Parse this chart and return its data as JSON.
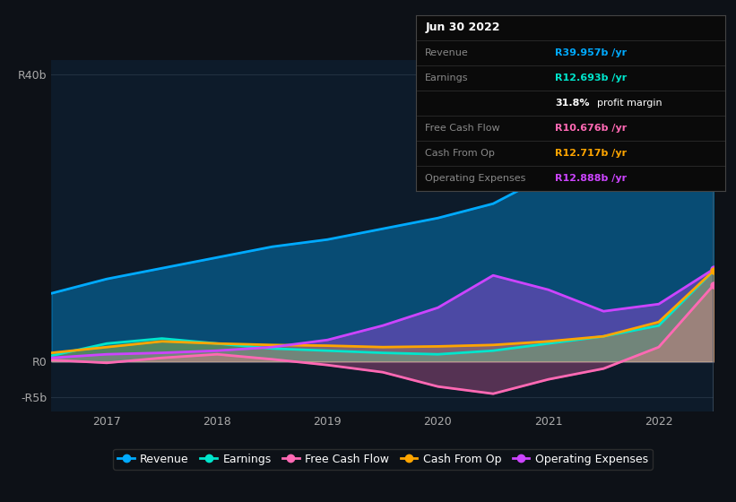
{
  "bg_color": "#0d1117",
  "plot_bg_color": "#0d1b2a",
  "grid_color": "#2a3a4a",
  "tooltip": {
    "Revenue": {
      "value": "R39.957b",
      "color": "#00aaff"
    },
    "Earnings": {
      "value": "R12.693b",
      "color": "#00e5cc"
    },
    "profit_margin": "31.8%",
    "Free Cash Flow": {
      "value": "R10.676b",
      "color": "#ff69b4"
    },
    "Cash From Op": {
      "value": "R12.717b",
      "color": "#ffa500"
    },
    "Operating Expenses": {
      "value": "R12.888b",
      "color": "#cc44ff"
    }
  },
  "x_years": [
    2016.5,
    2017,
    2017.5,
    2018,
    2018.5,
    2019,
    2019.5,
    2020,
    2020.5,
    2021,
    2021.5,
    2022,
    2022.5
  ],
  "revenue": [
    9.5,
    11.5,
    13.0,
    14.5,
    16.0,
    17.0,
    18.5,
    20.0,
    22.0,
    26.0,
    30.0,
    35.0,
    40.0
  ],
  "earnings": [
    0.8,
    2.5,
    3.2,
    2.5,
    1.8,
    1.5,
    1.2,
    1.0,
    1.5,
    2.5,
    3.5,
    5.0,
    12.7
  ],
  "free_cash_flow": [
    0.2,
    -0.2,
    0.5,
    1.0,
    0.3,
    -0.5,
    -1.5,
    -3.5,
    -4.5,
    -2.5,
    -1.0,
    2.0,
    10.7
  ],
  "cash_from_op": [
    1.2,
    2.0,
    2.8,
    2.5,
    2.3,
    2.2,
    2.0,
    2.1,
    2.3,
    2.8,
    3.5,
    5.5,
    12.7
  ],
  "operating_expenses": [
    0.5,
    1.0,
    1.2,
    1.5,
    2.0,
    3.0,
    5.0,
    7.5,
    12.0,
    10.0,
    7.0,
    8.0,
    12.9
  ],
  "revenue_color": "#00aaff",
  "earnings_color": "#00e5cc",
  "free_cash_flow_color": "#ff69b4",
  "cash_from_op_color": "#ffa500",
  "operating_expenses_color": "#cc44ff",
  "ylim": [
    -7,
    42
  ],
  "yticks": [
    -5,
    0,
    40
  ],
  "ytick_labels": [
    "-R5b",
    "R0",
    "R40b"
  ],
  "xtick_years": [
    2017,
    2018,
    2019,
    2020,
    2021,
    2022
  ],
  "legend_items": [
    {
      "label": "Revenue",
      "color": "#00aaff"
    },
    {
      "label": "Earnings",
      "color": "#00e5cc"
    },
    {
      "label": "Free Cash Flow",
      "color": "#ff69b4"
    },
    {
      "label": "Cash From Op",
      "color": "#ffa500"
    },
    {
      "label": "Operating Expenses",
      "color": "#cc44ff"
    }
  ],
  "tooltip_rows": [
    {
      "label": "Jun 30 2022",
      "value": null,
      "color": null,
      "is_title": true
    },
    {
      "label": "Revenue",
      "value": "R39.957b",
      "color": "#00aaff",
      "is_title": false
    },
    {
      "label": "Earnings",
      "value": "R12.693b",
      "color": "#00e5cc",
      "is_title": false
    },
    {
      "label": "",
      "value": "31.8% profit margin",
      "color": "#ffffff",
      "is_title": false
    },
    {
      "label": "Free Cash Flow",
      "value": "R10.676b",
      "color": "#ff69b4",
      "is_title": false
    },
    {
      "label": "Cash From Op",
      "value": "R12.717b",
      "color": "#ffa500",
      "is_title": false
    },
    {
      "label": "Operating Expenses",
      "value": "R12.888b",
      "color": "#cc44ff",
      "is_title": false
    }
  ]
}
